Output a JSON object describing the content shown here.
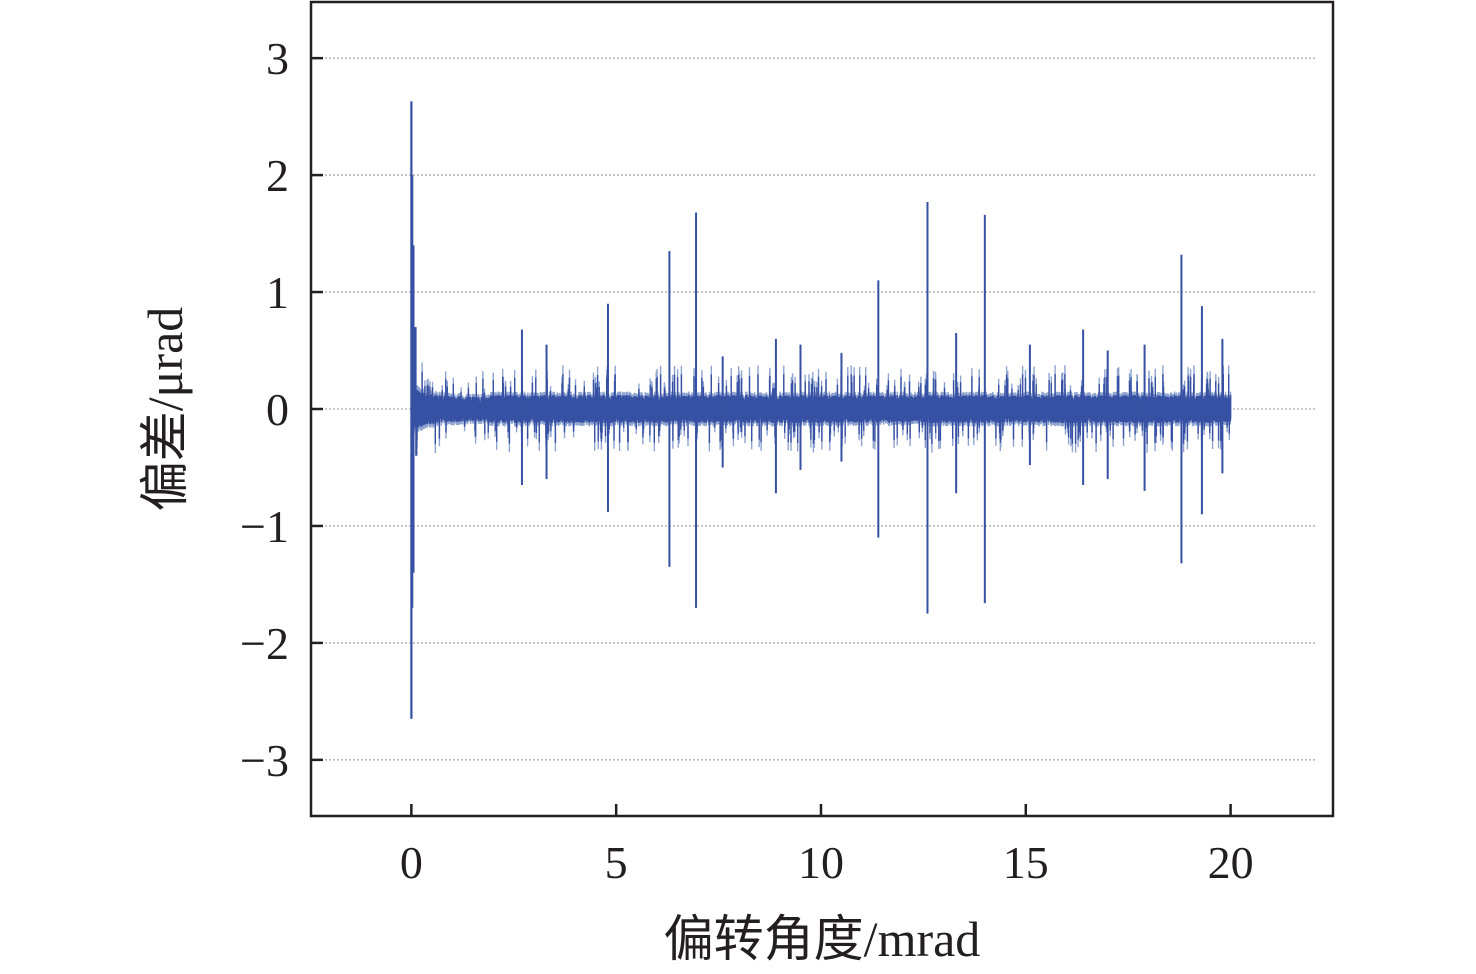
{
  "chart_data": {
    "type": "line",
    "xlabel": "偏转角度/mrad",
    "ylabel": "偏差/μrad",
    "xlim": [
      -2.45,
      22.5
    ],
    "ylim": [
      -3.48,
      3.48
    ],
    "x_ticks": [
      0,
      5,
      10,
      15,
      20
    ],
    "y_ticks": [
      -3,
      -2,
      -1,
      0,
      1,
      2,
      3
    ],
    "x_tick_labels": [
      "0",
      "5",
      "10",
      "15",
      "20"
    ],
    "y_tick_labels": [
      "−3",
      "−2",
      "−1",
      "0",
      "1",
      "2",
      "3"
    ],
    "grid": "horizontal dotted",
    "legend": "none",
    "colors": {
      "line": "#3650a3",
      "line_light": "#8fa3cf",
      "axis": "#231f20",
      "grid": "#b9b9b9"
    },
    "series": [
      {
        "x_range": [
          0,
          20
        ],
        "noise_band": 0.15,
        "startup_oscillation": [
          {
            "x": 0.0,
            "y": 2.63
          },
          {
            "x": 0.0,
            "y": -2.65
          },
          {
            "x": 0.02,
            "y": 2.0
          },
          {
            "x": 0.02,
            "y": -1.7
          },
          {
            "x": 0.05,
            "y": 1.4
          },
          {
            "x": 0.05,
            "y": -1.4
          },
          {
            "x": 0.1,
            "y": 0.7
          },
          {
            "x": 0.12,
            "y": -0.4
          }
        ],
        "spikes": [
          {
            "x": 2.7,
            "up": 0.68,
            "down": -0.65
          },
          {
            "x": 3.3,
            "up": 0.55,
            "down": -0.6
          },
          {
            "x": 4.8,
            "up": 0.9,
            "down": -0.88
          },
          {
            "x": 6.3,
            "up": 1.35,
            "down": -1.35
          },
          {
            "x": 6.95,
            "up": 1.68,
            "down": -1.7
          },
          {
            "x": 7.6,
            "up": 0.45,
            "down": -0.5
          },
          {
            "x": 8.9,
            "up": 0.6,
            "down": -0.72
          },
          {
            "x": 9.5,
            "up": 0.55,
            "down": -0.52
          },
          {
            "x": 10.5,
            "up": 0.48,
            "down": -0.45
          },
          {
            "x": 11.4,
            "up": 1.1,
            "down": -1.1
          },
          {
            "x": 12.6,
            "up": 1.77,
            "down": -1.75
          },
          {
            "x": 13.3,
            "up": 0.65,
            "down": -0.72
          },
          {
            "x": 14.0,
            "up": 1.66,
            "down": -1.66
          },
          {
            "x": 15.1,
            "up": 0.55,
            "down": -0.48
          },
          {
            "x": 16.4,
            "up": 0.68,
            "down": -0.65
          },
          {
            "x": 17.0,
            "up": 0.5,
            "down": -0.6
          },
          {
            "x": 17.9,
            "up": 0.55,
            "down": -0.7
          },
          {
            "x": 18.8,
            "up": 1.32,
            "down": -1.32
          },
          {
            "x": 19.3,
            "up": 0.88,
            "down": -0.9
          },
          {
            "x": 19.8,
            "up": 0.6,
            "down": -0.55
          }
        ]
      }
    ]
  }
}
